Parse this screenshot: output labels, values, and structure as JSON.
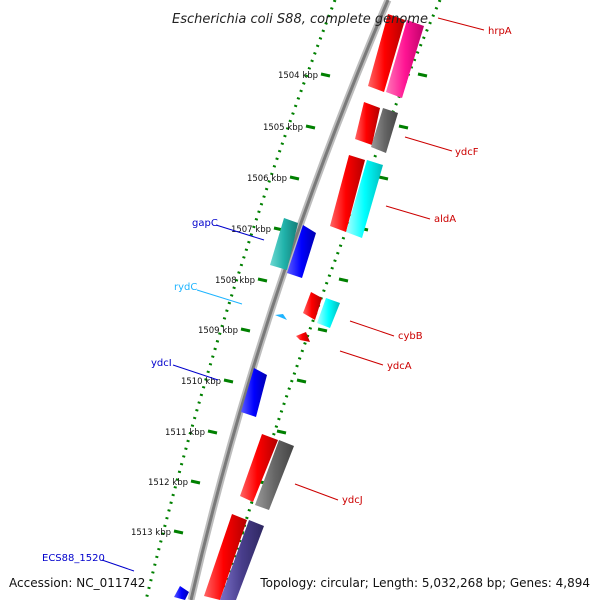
{
  "title": "Escherichia coli S88, complete genome",
  "footer": {
    "accession": "Accession: NC_011742",
    "info": "Topology: circular; Length: 5,032,268 bp; Genes: 4,894"
  },
  "colors": {
    "backbone": "#808080",
    "ticks": "#008000",
    "red": "#ff0000",
    "magenta": "#ff1493",
    "gray": "#666666",
    "cyan": "#00ffff",
    "teal": "#20b2aa",
    "blue": "#0000ff",
    "slate": "#483d8b",
    "sky": "#1eb4ff"
  },
  "ticks": [
    {
      "label": "1504 kbp",
      "kbp": 1504
    },
    {
      "label": "1505 kbp",
      "kbp": 1505
    },
    {
      "label": "1506 kbp",
      "kbp": 1506
    },
    {
      "label": "1507 kbp",
      "kbp": 1507
    },
    {
      "label": "1508 kbp",
      "kbp": 1508
    },
    {
      "label": "1509 kbp",
      "kbp": 1509
    },
    {
      "label": "1510 kbp",
      "kbp": 1510
    },
    {
      "label": "1511 kbp",
      "kbp": 1511
    },
    {
      "label": "1512 kbp",
      "kbp": 1512
    },
    {
      "label": "1513 kbp",
      "kbp": 1513
    }
  ],
  "gene_labels": [
    {
      "text": "hrpA",
      "color": "#cc0000",
      "side": "right"
    },
    {
      "text": "ydcF",
      "color": "#cc0000",
      "side": "right"
    },
    {
      "text": "aldA",
      "color": "#cc0000",
      "side": "right"
    },
    {
      "text": "gapC",
      "color": "#0000cc",
      "side": "left"
    },
    {
      "text": "rydC",
      "color": "#1eb4ff",
      "side": "left"
    },
    {
      "text": "cybB",
      "color": "#cc0000",
      "side": "right"
    },
    {
      "text": "ydcA",
      "color": "#cc0000",
      "side": "right"
    },
    {
      "text": "ydcI",
      "color": "#0000cc",
      "side": "left"
    },
    {
      "text": "ydcJ",
      "color": "#cc0000",
      "side": "right"
    },
    {
      "text": "ECS88_1520",
      "color": "#0000cc",
      "side": "left"
    }
  ]
}
